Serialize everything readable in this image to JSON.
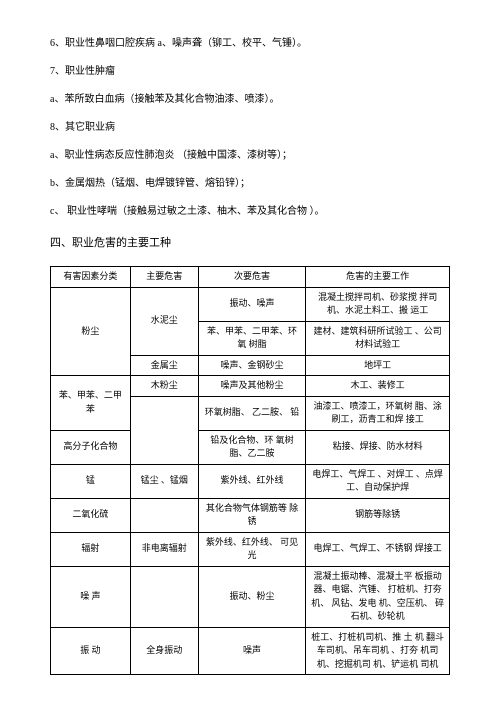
{
  "lines": {
    "l6": "6、职业性鼻咽口腔疾病  a、噪声聋（铆工、校平、气锤）。",
    "l7": "7、职业性肿瘤",
    "l7a": "a、苯所致白血病（接触苯及其化合物油漆、喷漆）。",
    "l8": "8、其它职业病",
    "l8a": "a、职业性病态反应性肺泡炎  （接触中国漆、漆树等）；",
    "l8b": "b、金属烟热（锰烟、电焊镀锌管、熔铅锌）；",
    "l8c": "c、  职业性哮喘（接触易过敏之土漆、柚木、苯及其化合物    ）。"
  },
  "section4": "四、职业危害的主要工种",
  "table": {
    "headers": [
      "有害因素分类",
      "主要危害",
      "次要危害",
      "危害的主要工作"
    ],
    "rows": [
      {
        "c1": "粉尘",
        "c1rs": 3,
        "c2": "水泥尘",
        "c2rs": 2,
        "c3": "振动、噪声",
        "c4": "混凝土搅拌司机、砂浆搅 拌司机、水泥土料工、搬 运工"
      },
      {
        "c3": "苯、甲苯、二甲苯、环氧 树脂",
        "c4": "建材、建筑科研所试验工 、公司材料试验工"
      },
      {
        "c2": "金属尘",
        "c3": "噪声、金钢砂尘",
        "c4": "地坪工"
      },
      {
        "c1": "苯、甲苯、二甲苯",
        "c2": "木粉尘",
        "c3": "噪声及其他粉尘",
        "c4": "木工、装修工"
      },
      {
        "c1": "高分子化合物",
        "c2": "聚氯乙烯",
        "c3": "环氧树脂、 乙二胺、 铅",
        "c4": "油漆工、喷漆工，环氧树 脂、涂刷工，沥青工和焊 接工"
      },
      {
        "c1": "锰",
        "c1rs": 1,
        "c2": "",
        "c3": "铅及化合物、环 氧树 脂、乙二胺",
        "c4": "粘接、焊接、防水材料"
      },
      {
        "c1": "",
        "c2": "锰尘 、锰烟",
        "c3": "紫外线、红外线",
        "c4": "电焊工、气焊工 、对焊工 、点焊工、自动保护焊"
      },
      {
        "c1": "二氧化硫",
        "c2": "",
        "c3": "其化合物气体钢筋等 除锈",
        "c4": "钢筋等除锈"
      },
      {
        "c1": "辐射",
        "c2": "非电离辐射",
        "c3": "紫外线、红外线、 可见光",
        "c4": "电焊工、气焊工、不锈钢 焊接工"
      },
      {
        "c1": "噪 声",
        "c2": "",
        "c3": "振动、粉尘",
        "c4": "混凝土振动棒、混凝土平 板振动器、电锯、汽锤、 打桩机、打夯机、 风钻、发电 机、空压机、 碎石机、砂轮机"
      },
      {
        "c1": "振 动",
        "c2": "全身振动",
        "c3": "噪声",
        "c4": "桩工、打桩机司机、推 土 机 翻斗车司机、吊车司机 、打夯 机司机、挖掘机司 机、铲运机 司机"
      }
    ]
  }
}
